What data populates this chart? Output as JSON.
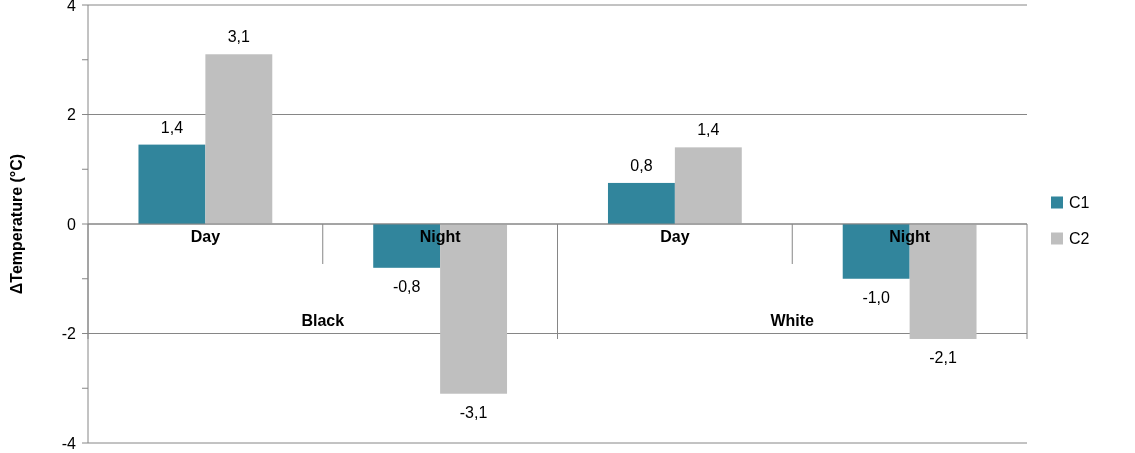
{
  "chart_data": {
    "type": "bar",
    "ylabel": "ΔTemperature (°C)",
    "categories": [
      "Day",
      "Night",
      "Day",
      "Night"
    ],
    "annotations": [
      "Black",
      "White"
    ],
    "series": [
      {
        "name": "C1",
        "color": "#31859c",
        "values": [
          1.45,
          -0.8,
          0.75,
          -1.0
        ],
        "value_labels": [
          "1,4",
          "-0,8",
          "0,8",
          "-1,0"
        ]
      },
      {
        "name": "C2",
        "color": "#bfbfbf",
        "values": [
          3.1,
          -3.1,
          1.4,
          -2.1
        ],
        "value_labels": [
          "3,1",
          "-3,1",
          "1,4",
          "-2,1"
        ]
      }
    ],
    "ylim": [
      -4,
      4
    ],
    "yticks": [
      {
        "value": -4,
        "label": "-4"
      },
      {
        "value": -3,
        "label": null
      },
      {
        "value": -2,
        "label": "-2"
      },
      {
        "value": -1,
        "label": null
      },
      {
        "value": 0,
        "label": "0"
      },
      {
        "value": 1,
        "label": null
      },
      {
        "value": 2,
        "label": "2"
      },
      {
        "value": 3,
        "label": null
      },
      {
        "value": 4,
        "label": "4"
      }
    ],
    "grid": "y",
    "legend": "right"
  }
}
